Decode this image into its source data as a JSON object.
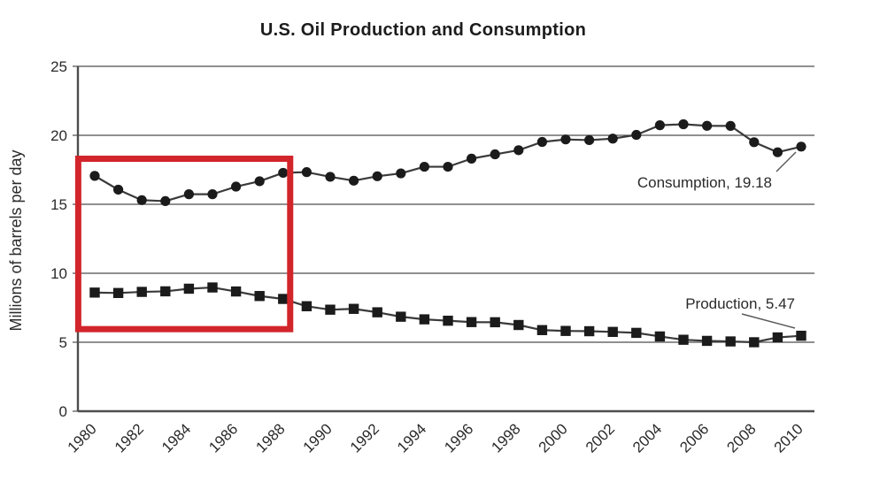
{
  "title": "U.S. Oil Production and Consumption",
  "ylabel": "Millions of barrels per day",
  "annotations": {
    "consumption": "Consumption, 19.18",
    "production": "Production, 5.47"
  },
  "colors": {
    "series": "#1b1b1b",
    "grid": "#4d4d4d",
    "highlight": "#d2252b",
    "background": "#ffffff"
  },
  "chart_data": {
    "type": "line",
    "title": "U.S. Oil Production and Consumption",
    "xlabel": "",
    "ylabel": "Millions of barrels per day",
    "ylim": [
      0,
      25
    ],
    "grid": "horizontal",
    "legend_position": "inline-annotations",
    "x": [
      1980,
      1981,
      1982,
      1983,
      1984,
      1985,
      1986,
      1987,
      1988,
      1989,
      1990,
      1991,
      1992,
      1993,
      1994,
      1995,
      1996,
      1997,
      1998,
      1999,
      2000,
      2001,
      2002,
      2003,
      2004,
      2005,
      2006,
      2007,
      2008,
      2009,
      2010
    ],
    "xticks": [
      1980,
      1982,
      1984,
      1986,
      1988,
      1990,
      1992,
      1994,
      1996,
      1998,
      2000,
      2002,
      2004,
      2006,
      2008,
      2010
    ],
    "yticks": [
      0,
      5,
      10,
      15,
      20,
      25
    ],
    "series": [
      {
        "name": "Consumption",
        "marker": "circle",
        "last_value_label": 19.18,
        "values": [
          17.06,
          16.06,
          15.3,
          15.23,
          15.73,
          15.73,
          16.28,
          16.67,
          17.28,
          17.33,
          16.99,
          16.71,
          17.03,
          17.24,
          17.72,
          17.72,
          18.31,
          18.62,
          18.92,
          19.52,
          19.7,
          19.65,
          19.76,
          20.03,
          20.73,
          20.8,
          20.69,
          20.68,
          19.5,
          18.77,
          19.18
        ]
      },
      {
        "name": "Production",
        "marker": "square",
        "last_value_label": 5.47,
        "values": [
          8.6,
          8.57,
          8.65,
          8.69,
          8.88,
          8.97,
          8.68,
          8.35,
          8.14,
          7.61,
          7.36,
          7.42,
          7.17,
          6.85,
          6.66,
          6.56,
          6.46,
          6.45,
          6.25,
          5.88,
          5.82,
          5.8,
          5.75,
          5.68,
          5.42,
          5.18,
          5.1,
          5.06,
          5.0,
          5.35,
          5.47
        ]
      }
    ],
    "highlight_box": {
      "x_start": 1979.3,
      "x_end": 1988.3,
      "y_bottom": 5.95,
      "y_top": 18.3,
      "color": "#d2252b"
    }
  }
}
